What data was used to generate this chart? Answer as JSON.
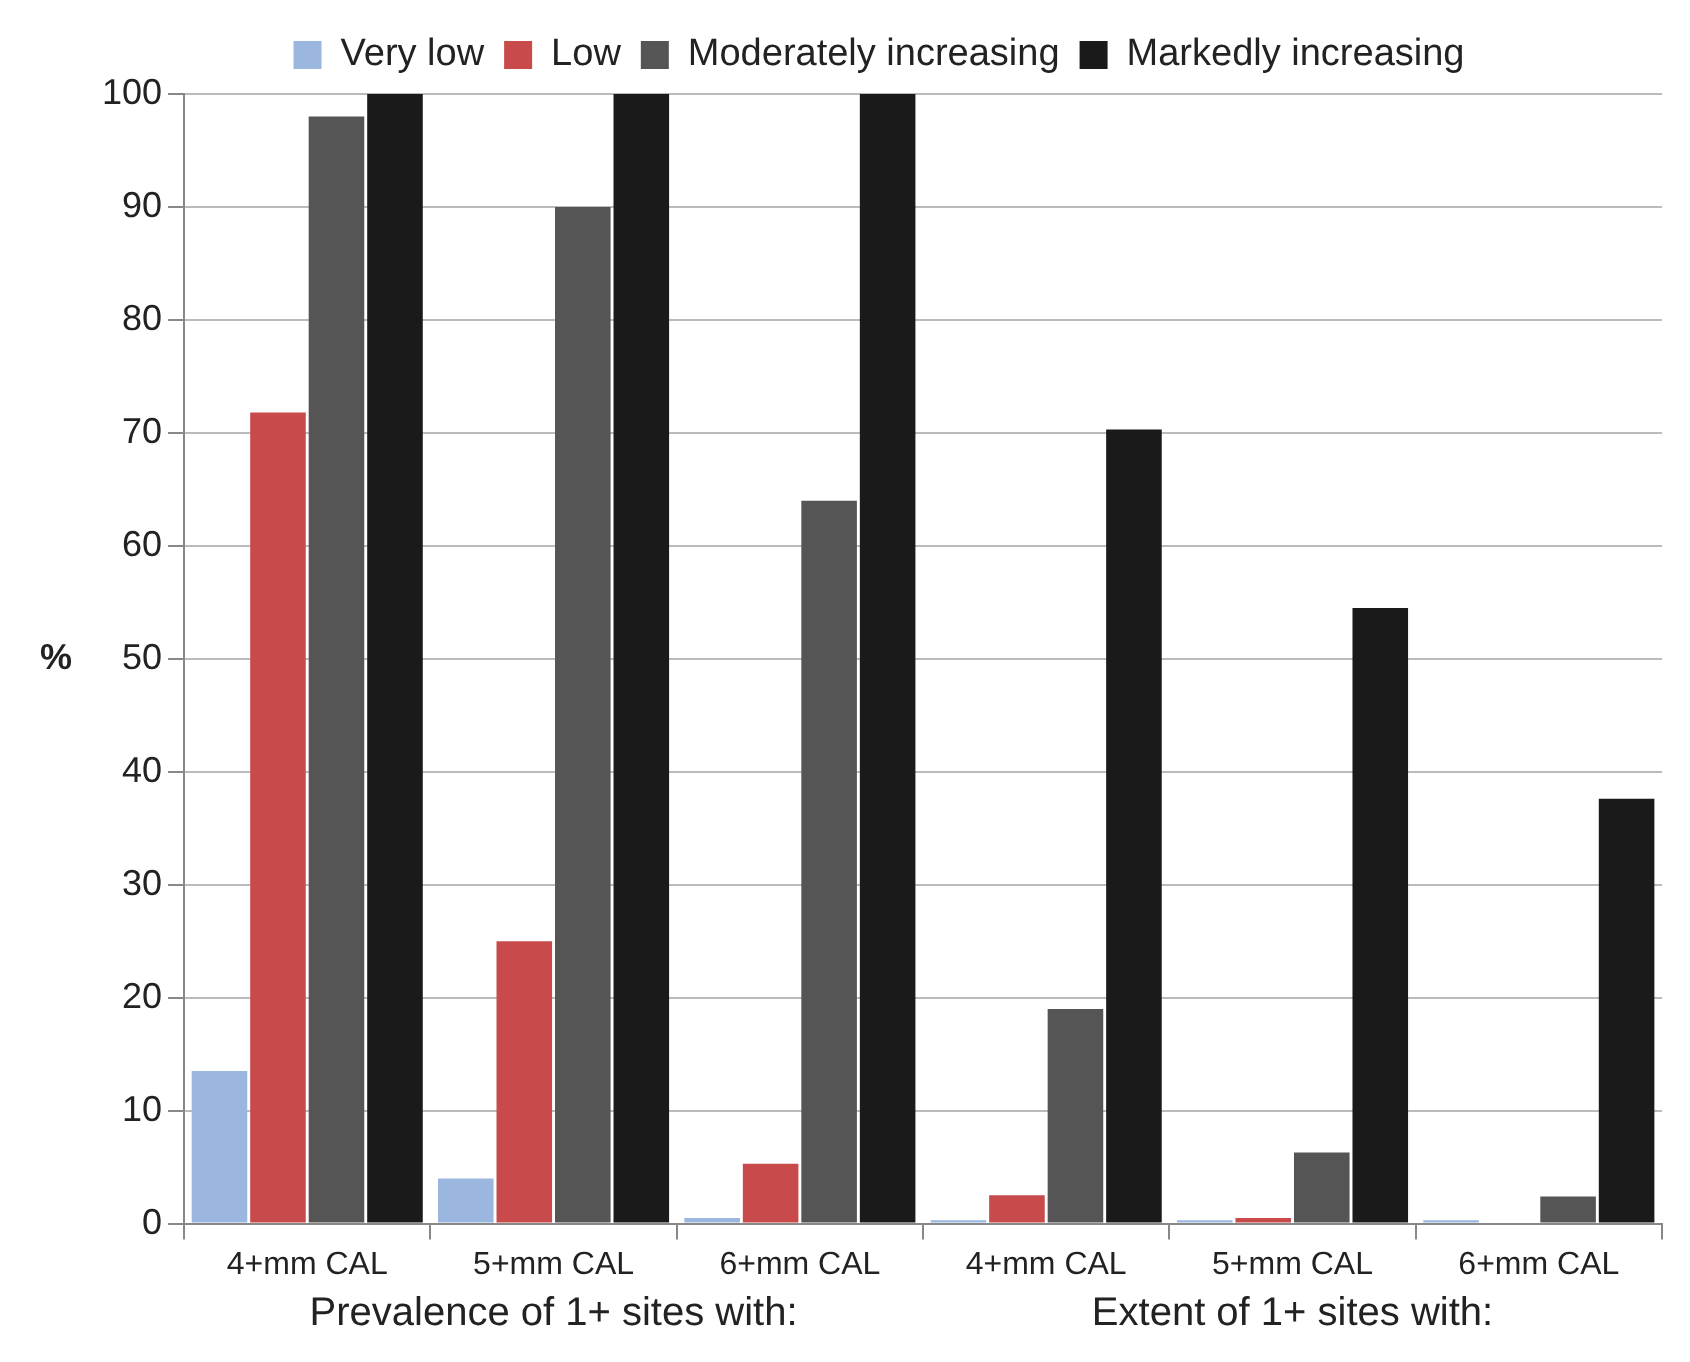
{
  "chart_data": {
    "type": "bar",
    "ylabel": "%",
    "categories": [
      "4+mm CAL",
      "5+mm CAL",
      "6+mm CAL",
      "4+mm CAL",
      "5+mm CAL",
      "6+mm CAL"
    ],
    "series": [
      {
        "name": "Very low",
        "color": "#9bb7e0",
        "values": [
          13.5,
          4,
          0.5,
          0.3,
          0.3,
          0.3
        ]
      },
      {
        "name": "Low",
        "color": "#c94a4a",
        "values": [
          71.8,
          25,
          5.3,
          2.5,
          0.5,
          0
        ]
      },
      {
        "name": "Moderately increasing",
        "color": "#555555",
        "values": [
          98,
          90,
          64,
          19,
          6.3,
          2.4
        ]
      },
      {
        "name": "Markedly increasing",
        "color": "#1a1a1a",
        "values": [
          100,
          100,
          100,
          70.3,
          54.5,
          37.6
        ]
      }
    ],
    "ylim": [
      0,
      100
    ],
    "yticks": [
      0,
      10,
      20,
      30,
      40,
      50,
      60,
      70,
      80,
      90,
      100
    ],
    "grid": "y",
    "legend": "top",
    "annotations": [
      "Prevalence of 1+ sites with:",
      "Extent of 1+ sites with:"
    ]
  }
}
